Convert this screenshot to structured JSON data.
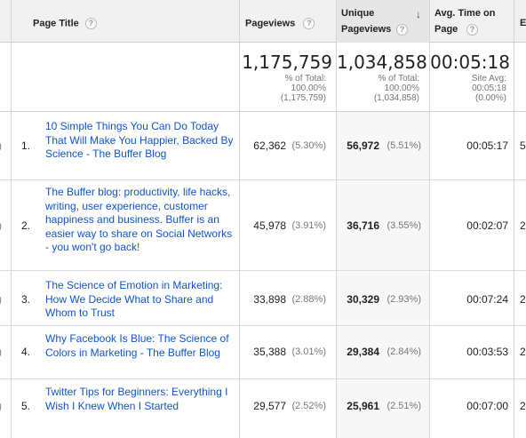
{
  "header": {
    "page_title": "Page Title",
    "pageviews": "Pageviews",
    "unique_line1": "Unique",
    "unique_line2": "Pageviews",
    "avg_line1": "Avg. Time on",
    "avg_line2": "Page",
    "edge": "E",
    "help_glyph": "?",
    "sort_glyph": "↓"
  },
  "totals": {
    "pageviews": {
      "value": "1,175,759",
      "l1": "% of Total:",
      "l2": "100.00%",
      "l3": "(1,175,759)"
    },
    "unique": {
      "value": "1,034,858",
      "l1": "% of Total:",
      "l2": "100.00%",
      "l3": "(1,034,858)"
    },
    "avg": {
      "value": "00:05:18",
      "l1": "Site Avg:",
      "l2": "00:05:18",
      "l3": "(0.00%)"
    }
  },
  "rows": [
    {
      "index": "1.",
      "title": "10 Simple Things You Can Do Today That Will Make You Happier, Backed By Science - The Buffer Blog",
      "pageviews": "62,362",
      "pv_pct": "(5.30%)",
      "unique": "56,972",
      "u_pct": "(5.51%)",
      "avg": "00:05:17",
      "edge": "5"
    },
    {
      "index": "2.",
      "title": "The Buffer blog: productivity, life hacks, writing, user experience, customer happiness and business. Buffer is an easier way to share on Social Networks - you won't go back!",
      "pageviews": "45,978",
      "pv_pct": "(3.91%)",
      "unique": "36,716",
      "u_pct": "(3.55%)",
      "avg": "00:02:07",
      "edge": "2"
    },
    {
      "index": "3.",
      "title": "The Science of Emotion in Marketing: How We Decide What to Share and Whom to Trust",
      "pageviews": "33,898",
      "pv_pct": "(2.88%)",
      "unique": "30,329",
      "u_pct": "(2.93%)",
      "avg": "00:07:24",
      "edge": "2"
    },
    {
      "index": "4.",
      "title": "Why Facebook Is Blue: The Science of Colors in Marketing - The Buffer Blog",
      "pageviews": "35,388",
      "pv_pct": "(3.01%)",
      "unique": "29,384",
      "u_pct": "(2.84%)",
      "avg": "00:03:53",
      "edge": "2"
    },
    {
      "index": "5.",
      "title": "Twitter Tips for Beginners: Everything I Wish I Knew When I Started",
      "pageviews": "29,577",
      "pv_pct": "(2.52%)",
      "unique": "25,961",
      "u_pct": "(2.51%)",
      "avg": "00:07:00",
      "edge": "2"
    }
  ]
}
